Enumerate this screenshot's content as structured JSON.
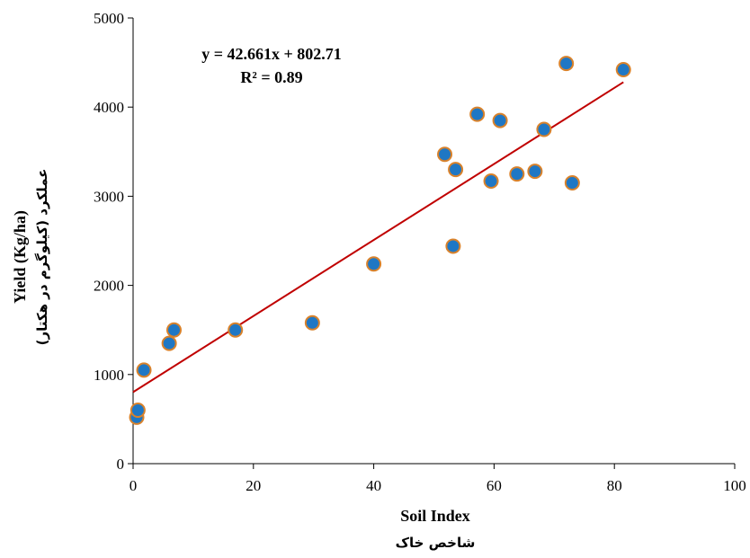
{
  "chart_data": {
    "type": "scatter",
    "xlabel": "Soil Index",
    "xlabel_sub": "شاخص خاک",
    "ylabel": "Yield (Kg/ha)",
    "ylabel_sub": "عملکرد (کیلوگرم در هکتار)",
    "xlim": [
      0,
      100
    ],
    "ylim": [
      0,
      5000
    ],
    "x_ticks": [
      "0",
      "20",
      "40",
      "60",
      "80",
      "100"
    ],
    "y_ticks": [
      "0",
      "1000",
      "2000",
      "3000",
      "4000",
      "5000"
    ],
    "grid": false,
    "colors": {
      "point_fill": "#1f77c4",
      "point_stroke": "#d9822b",
      "trend": "#c00000"
    },
    "points": [
      {
        "x": 0.6,
        "y": 520
      },
      {
        "x": 0.8,
        "y": 600
      },
      {
        "x": 1.8,
        "y": 1050
      },
      {
        "x": 6.0,
        "y": 1350
      },
      {
        "x": 6.8,
        "y": 1500
      },
      {
        "x": 17.0,
        "y": 1500
      },
      {
        "x": 29.8,
        "y": 1580
      },
      {
        "x": 40.0,
        "y": 2240
      },
      {
        "x": 51.8,
        "y": 3470
      },
      {
        "x": 53.2,
        "y": 2440
      },
      {
        "x": 53.6,
        "y": 3300
      },
      {
        "x": 57.2,
        "y": 3920
      },
      {
        "x": 59.5,
        "y": 3170
      },
      {
        "x": 61.0,
        "y": 3850
      },
      {
        "x": 63.8,
        "y": 3250
      },
      {
        "x": 66.8,
        "y": 3280
      },
      {
        "x": 68.3,
        "y": 3750
      },
      {
        "x": 72.0,
        "y": 4490
      },
      {
        "x": 73.0,
        "y": 3150
      },
      {
        "x": 81.5,
        "y": 4420
      }
    ],
    "trendline": {
      "slope": 42.661,
      "intercept": 802.71,
      "x_range": [
        0,
        81.5
      ],
      "equation": "y = 42.661x + 802.71",
      "r2": "R² = 0.89"
    }
  }
}
